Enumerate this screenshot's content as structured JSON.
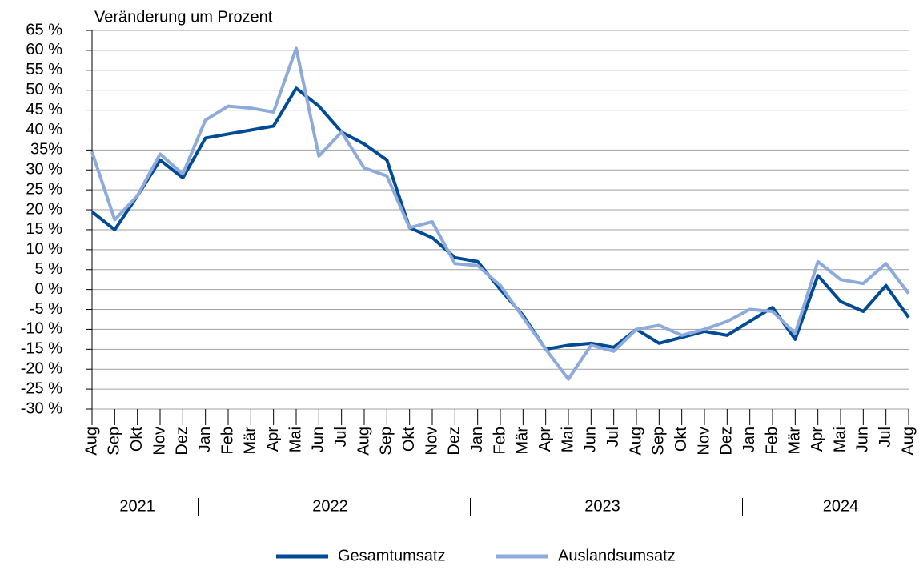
{
  "chart_data": {
    "type": "line",
    "title": "Veränderung um Prozent",
    "categories": [
      "Aug",
      "Sep",
      "Okt",
      "Nov",
      "Dez",
      "Jan",
      "Feb",
      "Mär",
      "Apr",
      "Mai",
      "Jun",
      "Jul",
      "Aug",
      "Sep",
      "Okt",
      "Nov",
      "Dez",
      "Jan",
      "Feb",
      "Mär",
      "Apr",
      "Mai",
      "Jun",
      "Jul",
      "Aug",
      "Sep",
      "Okt",
      "Nov",
      "Dez",
      "Jan",
      "Feb",
      "Mär",
      "Apr",
      "Mai",
      "Jun",
      "Jul",
      "Aug"
    ],
    "year_labels": [
      "2021",
      "2022",
      "2023",
      "2024"
    ],
    "series": [
      {
        "name": "Gesamtumsatz",
        "color": "#004a96",
        "values": [
          19.5,
          15,
          23.5,
          32.5,
          28,
          38,
          39,
          40,
          41,
          50.5,
          46,
          39.5,
          36.5,
          32.5,
          15.5,
          13,
          8,
          7,
          0,
          -6.5,
          -15,
          -14,
          -13.5,
          -14.5,
          -10,
          -13.5,
          -12,
          -10.5,
          -11.5,
          -8,
          -4.5,
          -12.5,
          3.5,
          -3,
          -5.5,
          1,
          -7
        ]
      },
      {
        "name": "Auslandsumsatz",
        "color": "#8eaadb",
        "values": [
          34.5,
          17.5,
          23.5,
          34,
          29,
          42.5,
          46,
          45.5,
          44.5,
          60.5,
          33.5,
          39.5,
          30.5,
          28.5,
          15.5,
          17,
          6.5,
          6,
          1,
          -7,
          -15,
          -22.5,
          -14,
          -15.5,
          -10,
          -9,
          -11.5,
          -10,
          -8,
          -5,
          -5.5,
          -11,
          7,
          2.5,
          1.5,
          6.5,
          -1
        ]
      }
    ],
    "ylim": [
      -30,
      65
    ],
    "yticks": [
      {
        "value": -30,
        "label": "-30 %"
      },
      {
        "value": -25,
        "label": "-25 %"
      },
      {
        "value": -20,
        "label": "-20 %"
      },
      {
        "value": -15,
        "label": "-15 %"
      },
      {
        "value": -10,
        "label": "-10 %"
      },
      {
        "value": -5,
        "label": "-5 %"
      },
      {
        "value": 0,
        "label": "0 %"
      },
      {
        "value": 5,
        "label": "5 %"
      },
      {
        "value": 10,
        "label": "10 %"
      },
      {
        "value": 15,
        "label": "15 %"
      },
      {
        "value": 20,
        "label": "20 %"
      },
      {
        "value": 25,
        "label": "25 %"
      },
      {
        "value": 30,
        "label": "30 %"
      },
      {
        "value": 35,
        "label": "35%"
      },
      {
        "value": 40,
        "label": "40 %"
      },
      {
        "value": 45,
        "label": "45 %"
      },
      {
        "value": 50,
        "label": "50 %"
      },
      {
        "value": 55,
        "label": "55 %"
      },
      {
        "value": 60,
        "label": "60 %"
      },
      {
        "value": 65,
        "label": "65 %"
      }
    ],
    "grid": true
  }
}
